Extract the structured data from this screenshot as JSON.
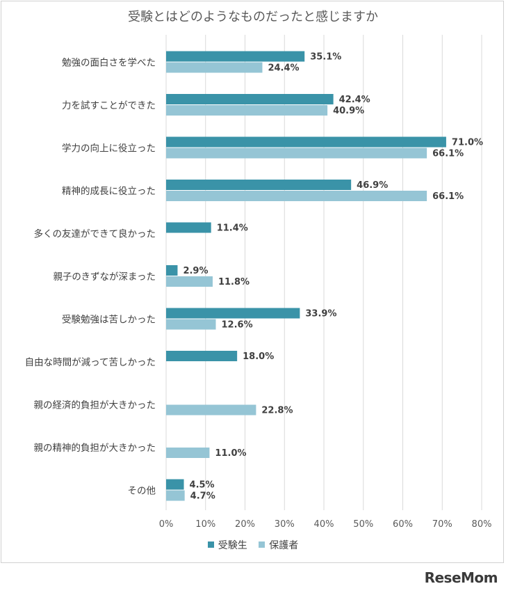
{
  "chart_data": {
    "type": "bar",
    "orientation": "horizontal",
    "title": "受験とはどのようなものだったと感じますか",
    "categories": [
      "勉強の面白さを学べた",
      "力を試すことができた",
      "学力の向上に役立った",
      "精神的成長に役立った",
      "多くの友達ができて良かった",
      "親子のきずなが深まった",
      "受験勉強は苦しかった",
      "自由な時間が減って苦しかった",
      "親の経済的負担が大きかった",
      "親の精神的負担が大きかった",
      "その他"
    ],
    "series": [
      {
        "name": "受験生",
        "color": "#3a93a8",
        "values": [
          35.1,
          42.4,
          71.0,
          46.9,
          11.4,
          2.9,
          33.9,
          18.0,
          null,
          null,
          4.5
        ],
        "labels": [
          "35.1%",
          "42.4%",
          "71.0%",
          "46.9%",
          "11.4%",
          "2.9%",
          "33.9%",
          "18.0%",
          "",
          "",
          "4.5%"
        ]
      },
      {
        "name": "保護者",
        "color": "#95c5d5",
        "values": [
          24.4,
          40.9,
          66.1,
          66.1,
          null,
          11.8,
          12.6,
          null,
          22.8,
          11.0,
          4.7
        ],
        "labels": [
          "24.4%",
          "40.9%",
          "66.1%",
          "66.1%",
          "",
          "11.8%",
          "12.6%",
          "",
          "22.8%",
          "11.0%",
          "4.7%"
        ]
      }
    ],
    "xlim": [
      0,
      80
    ],
    "xticks": [
      "0%",
      "10%",
      "20%",
      "30%",
      "40%",
      "50%",
      "60%",
      "70%",
      "80%"
    ],
    "grid": true,
    "legend_position": "bottom"
  },
  "watermark": "ReseMom"
}
